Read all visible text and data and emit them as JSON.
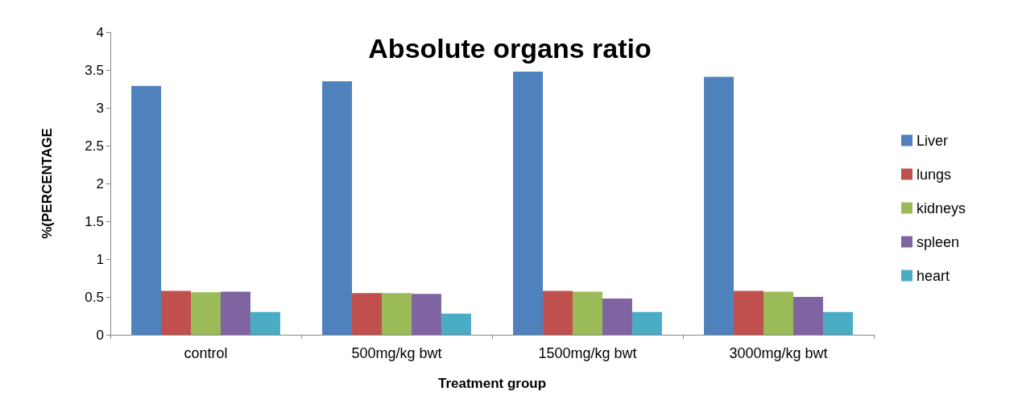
{
  "chart_data": {
    "type": "bar",
    "title": "Absolute organs ratio",
    "xlabel": "Treatment group",
    "ylabel": "%(PERCENTAGE",
    "categories": [
      "control",
      "500mg/kg bwt",
      "1500mg/kg bwt",
      "3000mg/kg bwt"
    ],
    "series": [
      {
        "name": "Liver",
        "color": "#4f81bd",
        "values": [
          3.29,
          3.35,
          3.48,
          3.41
        ]
      },
      {
        "name": "lungs",
        "color": "#c0504d",
        "values": [
          0.58,
          0.55,
          0.58,
          0.58
        ]
      },
      {
        "name": "kidneys",
        "color": "#9bbb59",
        "values": [
          0.56,
          0.55,
          0.57,
          0.57
        ]
      },
      {
        "name": "spleen",
        "color": "#8064a2",
        "values": [
          0.57,
          0.54,
          0.48,
          0.5
        ]
      },
      {
        "name": "heart",
        "color": "#4bacc6",
        "values": [
          0.3,
          0.28,
          0.3,
          0.3
        ]
      }
    ],
    "ylim": [
      0,
      4
    ],
    "yticks": [
      0,
      0.5,
      1,
      1.5,
      2,
      2.5,
      3,
      3.5,
      4
    ],
    "grid": false,
    "legend": "right"
  }
}
